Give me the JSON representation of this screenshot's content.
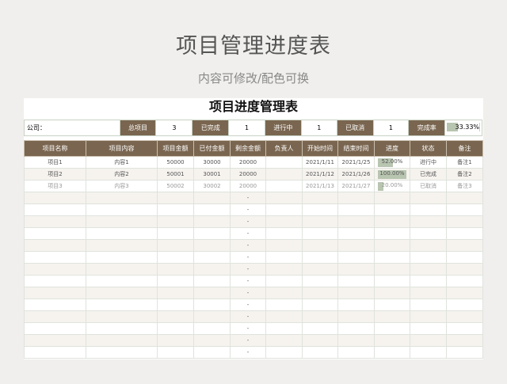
{
  "heading": "项目管理进度表",
  "subheading": "内容可修改/配色可换",
  "sheet_title": "项目进度管理表",
  "summary": {
    "company_label": "公司：",
    "total_label": "总项目",
    "total": "3",
    "done_label": "已完成",
    "done": "1",
    "ongoing_label": "进行中",
    "ongoing": "1",
    "cancel_label": "已取消",
    "cancel": "1",
    "rate_label": "完成率",
    "rate": "33.33%",
    "rate_value": 0.3333
  },
  "columns": [
    "项目名称",
    "项目内容",
    "项目金额",
    "已付金额",
    "剩余金额",
    "负责人",
    "开始时间",
    "结束时间",
    "进度",
    "状态",
    "备注"
  ],
  "rows": [
    {
      "name": "项目1",
      "content": "内容1",
      "amount": "50000",
      "paid": "30000",
      "remain": "20000",
      "owner": "",
      "start": "2021/1/11",
      "end": "2021/1/25",
      "progress": "52.00%",
      "progress_value": 0.52,
      "status": "进行中",
      "note": "备注1"
    },
    {
      "name": "项目2",
      "content": "内容2",
      "amount": "50001",
      "paid": "30001",
      "remain": "20000",
      "owner": "",
      "start": "2021/1/12",
      "end": "2021/1/26",
      "progress": "100.00%",
      "progress_value": 1.0,
      "status": "已完成",
      "note": "备注2"
    },
    {
      "name": "项目3",
      "content": "内容3",
      "amount": "50002",
      "paid": "30002",
      "remain": "20000",
      "owner": "",
      "start": "2021/1/13",
      "end": "2021/1/27",
      "progress": "20.00%",
      "progress_value": 0.2,
      "status": "已取消",
      "note": "备注3"
    }
  ],
  "empty_remain": "-",
  "empty_rows": 14,
  "colors": {
    "header": "#7a6650",
    "progress": "#b8c5b0",
    "alt_row": "#f6f3ef"
  }
}
